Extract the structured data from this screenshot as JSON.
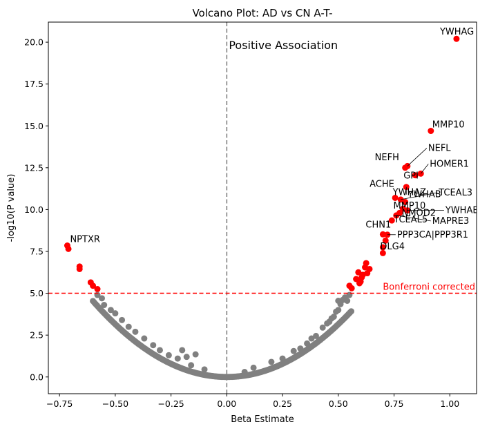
{
  "chart_data": {
    "type": "scatter",
    "title": "Volcano Plot: AD vs CN A-T-",
    "xlabel": "Beta Estimate",
    "ylabel": "-log10(P value)",
    "xlim": [
      -0.8,
      1.12
    ],
    "ylim": [
      -1.0,
      21.2
    ],
    "xticks": [
      -0.75,
      -0.5,
      -0.25,
      0.0,
      0.25,
      0.5,
      0.75,
      1.0
    ],
    "xtick_labels": [
      "−0.75",
      "−0.50",
      "−0.25",
      "0.00",
      "0.25",
      "0.50",
      "0.75",
      "1.00"
    ],
    "yticks": [
      0.0,
      2.5,
      5.0,
      7.5,
      10.0,
      12.5,
      15.0,
      17.5,
      20.0
    ],
    "ytick_labels": [
      "0.0",
      "2.5",
      "5.0",
      "7.5",
      "10.0",
      "12.5",
      "15.0",
      "17.5",
      "20.0"
    ],
    "colors": {
      "significant": "#ff0000",
      "nonsignificant": "#808080",
      "threshold": "#ff0000",
      "zero_line": "#808080"
    },
    "threshold": {
      "y": 5.0,
      "label": "Bonferroni corrected"
    },
    "annotation": "Positive Association",
    "background_curve": {
      "coefficient": 12.6,
      "min_x": -0.6,
      "max_x": 0.56,
      "step": 0.006,
      "color": "#808080"
    },
    "series": [
      {
        "color": "#ff0000",
        "points": [
          {
            "x": 1.03,
            "y": 20.2,
            "label": "YWHAG"
          },
          {
            "x": 0.915,
            "y": 14.7,
            "label": "MMP10"
          },
          {
            "x": 0.81,
            "y": 12.6,
            "label": "NEFL"
          },
          {
            "x": 0.8,
            "y": 12.5,
            "label": "NEFH"
          },
          {
            "x": 0.87,
            "y": 12.15,
            "label": "HOMER1"
          },
          {
            "x": 0.845,
            "y": 12.05,
            "label": "GPI"
          },
          {
            "x": 0.805,
            "y": 11.35,
            "label": "YWHAB"
          },
          {
            "x": 0.755,
            "y": 10.7,
            "label": "ACHE"
          },
          {
            "x": 0.78,
            "y": 10.6,
            "label": "TCEAL3"
          },
          {
            "x": 0.8,
            "y": 10.45,
            "label": "YWHAZ"
          },
          {
            "x": 0.79,
            "y": 10.05,
            "label": "MMP10"
          },
          {
            "x": 0.81,
            "y": 9.95,
            "label": "YWHAE"
          },
          {
            "x": 0.775,
            "y": 9.8,
            "label": "NMOD2"
          },
          {
            "x": 0.76,
            "y": 9.65,
            "label": "MAPRE3"
          },
          {
            "x": 0.74,
            "y": 9.35,
            "label": "TCEAL5"
          },
          {
            "x": 0.72,
            "y": 8.5,
            "label": "PPP3CA|PPP3R1"
          },
          {
            "x": 0.7,
            "y": 8.52,
            "label": "CHN1"
          },
          {
            "x": 0.7,
            "y": 7.75,
            "label": "DLG4"
          },
          {
            "x": 0.7,
            "y": 7.4,
            "label": ""
          },
          {
            "x": 0.712,
            "y": 8.15,
            "label": ""
          },
          {
            "x": -0.715,
            "y": 7.85,
            "label": "NPTXR"
          },
          {
            "x": -0.71,
            "y": 7.65,
            "label": ""
          },
          {
            "x": -0.66,
            "y": 6.6,
            "label": ""
          },
          {
            "x": -0.66,
            "y": 6.45,
            "label": ""
          },
          {
            "x": -0.61,
            "y": 5.65,
            "label": ""
          },
          {
            "x": -0.6,
            "y": 5.45,
            "label": ""
          },
          {
            "x": -0.58,
            "y": 5.25,
            "label": ""
          },
          {
            "x": 0.55,
            "y": 5.45,
            "label": ""
          },
          {
            "x": 0.56,
            "y": 5.3,
            "label": ""
          },
          {
            "x": 0.58,
            "y": 5.85,
            "label": ""
          },
          {
            "x": 0.59,
            "y": 6.25,
            "label": ""
          },
          {
            "x": 0.6,
            "y": 5.7,
            "label": ""
          },
          {
            "x": 0.61,
            "y": 6.1,
            "label": ""
          },
          {
            "x": 0.62,
            "y": 6.55,
            "label": ""
          },
          {
            "x": 0.625,
            "y": 6.8,
            "label": ""
          },
          {
            "x": 0.63,
            "y": 6.2,
            "label": ""
          },
          {
            "x": 0.64,
            "y": 6.45,
            "label": ""
          },
          {
            "x": 0.605,
            "y": 5.95,
            "label": ""
          },
          {
            "x": 0.595,
            "y": 5.6,
            "label": ""
          }
        ]
      },
      {
        "color": "#808080",
        "points": [
          {
            "x": -0.2,
            "y": 1.6
          },
          {
            "x": -0.18,
            "y": 1.2
          },
          {
            "x": -0.14,
            "y": 1.35
          },
          {
            "x": -0.16,
            "y": 0.7
          },
          {
            "x": -0.1,
            "y": 0.45
          },
          {
            "x": 0.08,
            "y": 0.3
          },
          {
            "x": 0.12,
            "y": 0.55
          },
          {
            "x": 0.2,
            "y": 0.9
          },
          {
            "x": 0.3,
            "y": 1.55
          },
          {
            "x": 0.38,
            "y": 2.3
          },
          {
            "x": 0.4,
            "y": 2.45
          },
          {
            "x": 0.43,
            "y": 2.95
          },
          {
            "x": 0.45,
            "y": 3.2
          },
          {
            "x": 0.46,
            "y": 3.3
          },
          {
            "x": 0.47,
            "y": 3.5
          },
          {
            "x": 0.48,
            "y": 3.6
          },
          {
            "x": 0.5,
            "y": 4.0
          },
          {
            "x": 0.51,
            "y": 4.35
          },
          {
            "x": 0.52,
            "y": 4.6
          },
          {
            "x": 0.53,
            "y": 4.75
          },
          {
            "x": 0.54,
            "y": 4.55
          },
          {
            "x": 0.55,
            "y": 4.9
          },
          {
            "x": 0.5,
            "y": 4.55
          },
          {
            "x": 0.49,
            "y": 3.9
          },
          {
            "x": -0.58,
            "y": 4.9
          },
          {
            "x": -0.56,
            "y": 4.7
          },
          {
            "x": -0.55,
            "y": 4.3
          },
          {
            "x": -0.52,
            "y": 4.0
          },
          {
            "x": -0.5,
            "y": 3.8
          },
          {
            "x": -0.47,
            "y": 3.4
          },
          {
            "x": -0.44,
            "y": 3.0
          },
          {
            "x": -0.41,
            "y": 2.7
          },
          {
            "x": -0.37,
            "y": 2.3
          },
          {
            "x": -0.33,
            "y": 1.9
          },
          {
            "x": -0.3,
            "y": 1.6
          },
          {
            "x": -0.26,
            "y": 1.3
          },
          {
            "x": -0.22,
            "y": 1.1
          },
          {
            "x": 0.25,
            "y": 1.1
          },
          {
            "x": 0.33,
            "y": 1.7
          },
          {
            "x": 0.36,
            "y": 2.0
          }
        ]
      }
    ]
  }
}
